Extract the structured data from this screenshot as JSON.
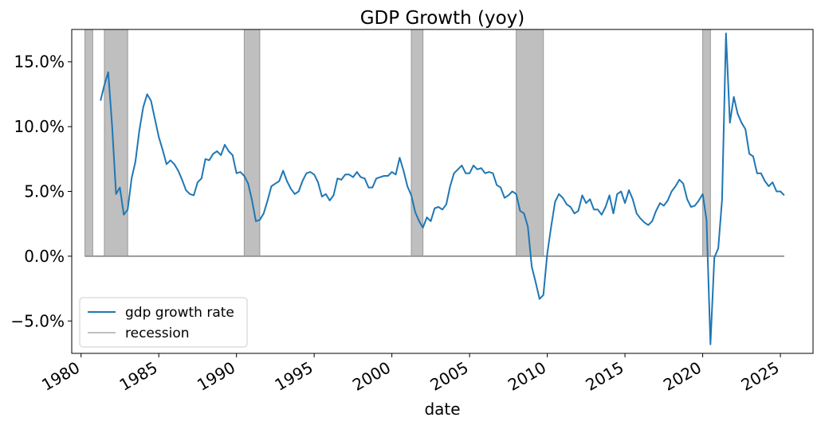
{
  "chart_data": {
    "type": "line",
    "title": "GDP Growth (yoy)",
    "xlabel": "date",
    "ylabel": "",
    "xlim": [
      1979.4,
      2027.1
    ],
    "ylim": [
      -7.5,
      17.5
    ],
    "x_ticks": [
      1980,
      1985,
      1990,
      1995,
      2000,
      2005,
      2010,
      2015,
      2020,
      2025
    ],
    "x_tick_labels": [
      "1980",
      "1985",
      "1990",
      "1995",
      "2000",
      "2005",
      "2010",
      "2015",
      "2020",
      "2025"
    ],
    "y_ticks": [
      -5,
      0,
      5,
      10,
      15
    ],
    "y_tick_labels": [
      "−5.0%",
      "0.0%",
      "5.0%",
      "10.0%",
      "15.0%"
    ],
    "legend": {
      "position": "lower-left",
      "entries": [
        "gdp growth rate",
        "recession"
      ]
    },
    "colors": {
      "gdp": "#1f77b4",
      "recession_fill": "#bfbfbf",
      "recession_edge": "#999999"
    },
    "recessions": [
      [
        1980.25,
        1980.75
      ],
      [
        1981.5,
        1983.0
      ],
      [
        1990.5,
        1991.5
      ],
      [
        2001.25,
        2002.0
      ],
      [
        2008.0,
        2009.75
      ],
      [
        2020.0,
        2020.5
      ]
    ],
    "series": [
      {
        "name": "gdp growth rate",
        "points": [
          [
            1981.25,
            12.0
          ],
          [
            1981.5,
            13.2
          ],
          [
            1981.75,
            14.2
          ],
          [
            1982.0,
            10.0
          ],
          [
            1982.25,
            4.8
          ],
          [
            1982.5,
            5.3
          ],
          [
            1982.75,
            3.2
          ],
          [
            1983.0,
            3.6
          ],
          [
            1983.25,
            6.0
          ],
          [
            1983.5,
            7.3
          ],
          [
            1983.75,
            9.7
          ],
          [
            1984.0,
            11.5
          ],
          [
            1984.25,
            12.5
          ],
          [
            1984.5,
            12.0
          ],
          [
            1984.75,
            10.6
          ],
          [
            1985.0,
            9.2
          ],
          [
            1985.25,
            8.2
          ],
          [
            1985.5,
            7.1
          ],
          [
            1985.75,
            7.4
          ],
          [
            1986.0,
            7.1
          ],
          [
            1986.25,
            6.6
          ],
          [
            1986.5,
            5.9
          ],
          [
            1986.75,
            5.1
          ],
          [
            1987.0,
            4.8
          ],
          [
            1987.25,
            4.7
          ],
          [
            1987.5,
            5.7
          ],
          [
            1987.75,
            6.0
          ],
          [
            1988.0,
            7.5
          ],
          [
            1988.25,
            7.4
          ],
          [
            1988.5,
            7.9
          ],
          [
            1988.75,
            8.1
          ],
          [
            1989.0,
            7.8
          ],
          [
            1989.25,
            8.6
          ],
          [
            1989.5,
            8.1
          ],
          [
            1989.75,
            7.8
          ],
          [
            1990.0,
            6.4
          ],
          [
            1990.25,
            6.5
          ],
          [
            1990.5,
            6.2
          ],
          [
            1990.75,
            5.6
          ],
          [
            1991.0,
            4.3
          ],
          [
            1991.25,
            2.7
          ],
          [
            1991.5,
            2.8
          ],
          [
            1991.75,
            3.3
          ],
          [
            1992.0,
            4.3
          ],
          [
            1992.25,
            5.4
          ],
          [
            1992.5,
            5.6
          ],
          [
            1992.75,
            5.8
          ],
          [
            1993.0,
            6.6
          ],
          [
            1993.25,
            5.8
          ],
          [
            1993.5,
            5.2
          ],
          [
            1993.75,
            4.8
          ],
          [
            1994.0,
            5.0
          ],
          [
            1994.25,
            5.8
          ],
          [
            1994.5,
            6.4
          ],
          [
            1994.75,
            6.5
          ],
          [
            1995.0,
            6.3
          ],
          [
            1995.25,
            5.7
          ],
          [
            1995.5,
            4.6
          ],
          [
            1995.75,
            4.8
          ],
          [
            1996.0,
            4.3
          ],
          [
            1996.25,
            4.7
          ],
          [
            1996.5,
            6.0
          ],
          [
            1996.75,
            5.9
          ],
          [
            1997.0,
            6.3
          ],
          [
            1997.25,
            6.3
          ],
          [
            1997.5,
            6.1
          ],
          [
            1997.75,
            6.5
          ],
          [
            1998.0,
            6.1
          ],
          [
            1998.25,
            6.0
          ],
          [
            1998.5,
            5.3
          ],
          [
            1998.75,
            5.3
          ],
          [
            1999.0,
            6.0
          ],
          [
            1999.25,
            6.1
          ],
          [
            1999.5,
            6.2
          ],
          [
            1999.75,
            6.2
          ],
          [
            2000.0,
            6.5
          ],
          [
            2000.25,
            6.3
          ],
          [
            2000.5,
            7.6
          ],
          [
            2000.75,
            6.6
          ],
          [
            2001.0,
            5.4
          ],
          [
            2001.25,
            4.7
          ],
          [
            2001.5,
            3.4
          ],
          [
            2001.75,
            2.7
          ],
          [
            2002.0,
            2.2
          ],
          [
            2002.25,
            3.0
          ],
          [
            2002.5,
            2.7
          ],
          [
            2002.75,
            3.7
          ],
          [
            2003.0,
            3.8
          ],
          [
            2003.25,
            3.6
          ],
          [
            2003.5,
            4.0
          ],
          [
            2003.75,
            5.4
          ],
          [
            2004.0,
            6.4
          ],
          [
            2004.25,
            6.7
          ],
          [
            2004.5,
            7.0
          ],
          [
            2004.75,
            6.4
          ],
          [
            2005.0,
            6.4
          ],
          [
            2005.25,
            7.0
          ],
          [
            2005.5,
            6.7
          ],
          [
            2005.75,
            6.8
          ],
          [
            2006.0,
            6.4
          ],
          [
            2006.25,
            6.5
          ],
          [
            2006.5,
            6.4
          ],
          [
            2006.75,
            5.5
          ],
          [
            2007.0,
            5.3
          ],
          [
            2007.25,
            4.5
          ],
          [
            2007.5,
            4.7
          ],
          [
            2007.75,
            5.0
          ],
          [
            2008.0,
            4.8
          ],
          [
            2008.25,
            3.5
          ],
          [
            2008.5,
            3.3
          ],
          [
            2008.75,
            2.3
          ],
          [
            2009.0,
            -0.8
          ],
          [
            2009.25,
            -2.0
          ],
          [
            2009.5,
            -3.3
          ],
          [
            2009.75,
            -3.0
          ],
          [
            2010.0,
            0.2
          ],
          [
            2010.25,
            2.3
          ],
          [
            2010.5,
            4.2
          ],
          [
            2010.75,
            4.8
          ],
          [
            2011.0,
            4.5
          ],
          [
            2011.25,
            4.0
          ],
          [
            2011.5,
            3.8
          ],
          [
            2011.75,
            3.3
          ],
          [
            2012.0,
            3.5
          ],
          [
            2012.25,
            4.7
          ],
          [
            2012.5,
            4.1
          ],
          [
            2012.75,
            4.4
          ],
          [
            2013.0,
            3.6
          ],
          [
            2013.25,
            3.6
          ],
          [
            2013.5,
            3.2
          ],
          [
            2013.75,
            3.8
          ],
          [
            2014.0,
            4.7
          ],
          [
            2014.25,
            3.3
          ],
          [
            2014.5,
            4.8
          ],
          [
            2014.75,
            5.0
          ],
          [
            2015.0,
            4.1
          ],
          [
            2015.25,
            5.1
          ],
          [
            2015.5,
            4.4
          ],
          [
            2015.75,
            3.3
          ],
          [
            2016.0,
            2.9
          ],
          [
            2016.25,
            2.6
          ],
          [
            2016.5,
            2.4
          ],
          [
            2016.75,
            2.7
          ],
          [
            2017.0,
            3.5
          ],
          [
            2017.25,
            4.1
          ],
          [
            2017.5,
            3.9
          ],
          [
            2017.75,
            4.3
          ],
          [
            2018.0,
            5.0
          ],
          [
            2018.25,
            5.4
          ],
          [
            2018.5,
            5.9
          ],
          [
            2018.75,
            5.6
          ],
          [
            2019.0,
            4.4
          ],
          [
            2019.25,
            3.8
          ],
          [
            2019.5,
            3.9
          ],
          [
            2019.75,
            4.3
          ],
          [
            2020.0,
            4.8
          ],
          [
            2020.25,
            2.8
          ],
          [
            2020.5,
            -6.8
          ],
          [
            2020.75,
            -0.1
          ],
          [
            2021.0,
            0.6
          ],
          [
            2021.25,
            4.4
          ],
          [
            2021.5,
            17.2
          ],
          [
            2021.75,
            10.3
          ],
          [
            2022.0,
            12.3
          ],
          [
            2022.25,
            11.0
          ],
          [
            2022.5,
            10.3
          ],
          [
            2022.75,
            9.8
          ],
          [
            2023.0,
            7.9
          ],
          [
            2023.25,
            7.7
          ],
          [
            2023.5,
            6.4
          ],
          [
            2023.75,
            6.4
          ],
          [
            2024.0,
            5.8
          ],
          [
            2024.25,
            5.4
          ],
          [
            2024.5,
            5.7
          ],
          [
            2024.75,
            5.0
          ],
          [
            2025.0,
            5.0
          ],
          [
            2025.25,
            4.7
          ]
        ]
      },
      {
        "name": "recession",
        "x_range": [
          1980.25,
          2025.25
        ],
        "value": 0
      }
    ]
  }
}
